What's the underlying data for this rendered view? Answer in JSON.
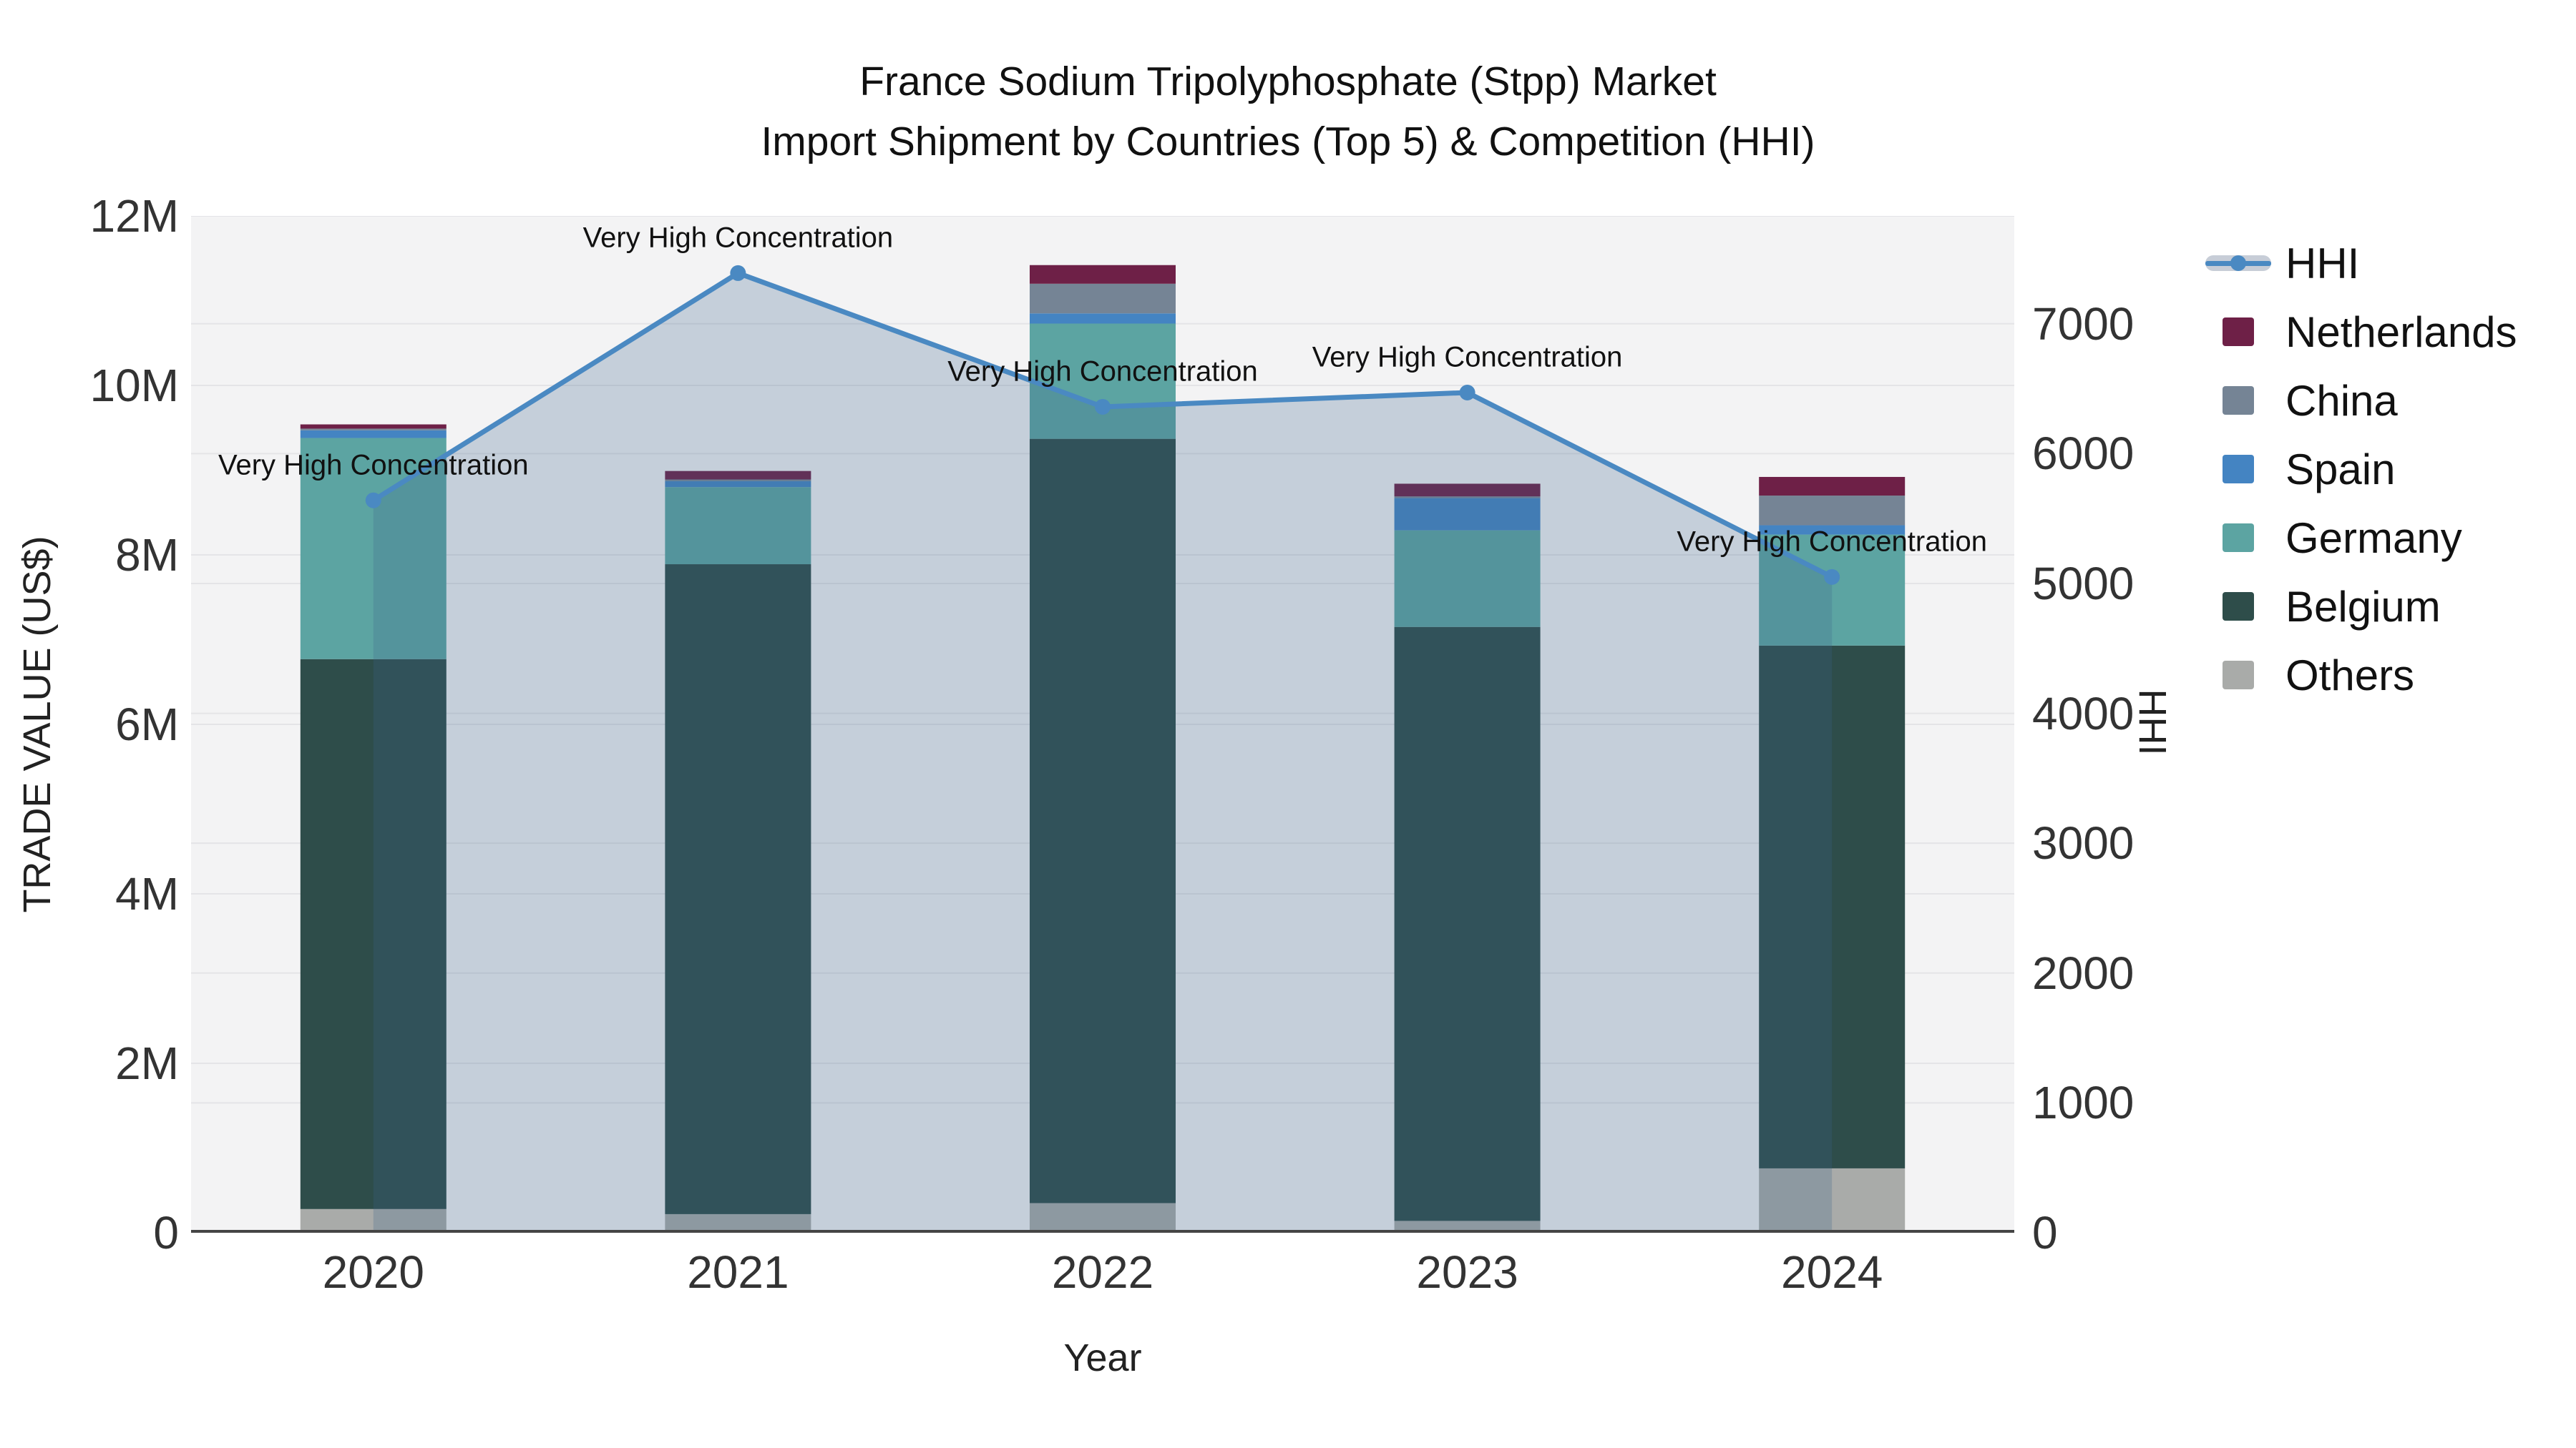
{
  "title": {
    "line1": "France Sodium Tripolyphosphate (Stpp) Market",
    "line2": "Import Shipment by Countries (Top 5) & Competition (HHI)"
  },
  "chart_data": {
    "type": "bar+line",
    "x_labels": [
      "2020",
      "2021",
      "2022",
      "2023",
      "2024"
    ],
    "bar_series_stack_bottom_to_top": [
      {
        "name": "Others",
        "color": "#a9aba9",
        "values_musd": [
          0.28,
          0.22,
          0.35,
          0.14,
          0.76
        ]
      },
      {
        "name": "Belgium",
        "color": "#2e4d4a",
        "values_musd": [
          6.49,
          7.67,
          9.02,
          7.01,
          6.17
        ]
      },
      {
        "name": "Germany",
        "color": "#5ca4a2",
        "values_musd": [
          2.61,
          0.91,
          1.36,
          1.14,
          1.31
        ]
      },
      {
        "name": "Spain",
        "color": "#4484c2",
        "values_musd": [
          0.09,
          0.07,
          0.12,
          0.38,
          0.11
        ]
      },
      {
        "name": "China",
        "color": "#758495",
        "values_musd": [
          0.02,
          0.02,
          0.35,
          0.02,
          0.35
        ]
      },
      {
        "name": "Netherlands",
        "color": "#6e2047",
        "values_musd": [
          0.05,
          0.1,
          0.22,
          0.15,
          0.22
        ]
      }
    ],
    "bar_totals_musd": [
      9.54,
      8.99,
      11.42,
      8.84,
      8.92
    ],
    "line_series": {
      "name": "HHI",
      "color": "#4a89c2",
      "area_fill": "rgba(60,100,140,0.25)",
      "values": [
        5640,
        7390,
        6360,
        6470,
        5050
      ]
    },
    "annotations": [
      {
        "x_index": 0,
        "label": "Very High Concentration"
      },
      {
        "x_index": 1,
        "label": "Very High Concentration"
      },
      {
        "x_index": 2,
        "label": "Very High Concentration"
      },
      {
        "x_index": 3,
        "label": "Very High Concentration"
      },
      {
        "x_index": 4,
        "label": "Very High Concentration"
      }
    ],
    "yaxis_left": {
      "title": "TRADE VALUE (US$)",
      "max_musd": 12,
      "ticks": [
        {
          "label": "0",
          "value_musd": 0
        },
        {
          "label": "2M",
          "value_musd": 2
        },
        {
          "label": "4M",
          "value_musd": 4
        },
        {
          "label": "6M",
          "value_musd": 6
        },
        {
          "label": "8M",
          "value_musd": 8
        },
        {
          "label": "10M",
          "value_musd": 10
        },
        {
          "label": "12M",
          "value_musd": 12
        }
      ]
    },
    "yaxis_right": {
      "title": "HHI",
      "plot_top_value": 7830,
      "ticks": [
        {
          "label": "0",
          "value": 0
        },
        {
          "label": "1000",
          "value": 1000
        },
        {
          "label": "2000",
          "value": 2000
        },
        {
          "label": "3000",
          "value": 3000
        },
        {
          "label": "4000",
          "value": 4000
        },
        {
          "label": "5000",
          "value": 5000
        },
        {
          "label": "6000",
          "value": 6000
        },
        {
          "label": "7000",
          "value": 7000
        }
      ]
    },
    "xaxis": {
      "title": "Year"
    },
    "grid_on": true,
    "legend_position": "right"
  },
  "legend": {
    "items": [
      {
        "label": "HHI",
        "type": "line",
        "color": "#4a89c2",
        "band_color": "#c7cdd7"
      },
      {
        "label": "Netherlands",
        "type": "box",
        "color": "#6e2047"
      },
      {
        "label": "China",
        "type": "box",
        "color": "#758495"
      },
      {
        "label": "Spain",
        "type": "box",
        "color": "#4484c2"
      },
      {
        "label": "Germany",
        "type": "box",
        "color": "#5ca4a2"
      },
      {
        "label": "Belgium",
        "type": "box",
        "color": "#2e4d4a"
      },
      {
        "label": "Others",
        "type": "box",
        "color": "#a9aba9"
      }
    ]
  },
  "colors": {
    "plot_background": "#f3f3f4",
    "gridline": "#e4e4e7",
    "axis_line": "#454545",
    "text": "#111111"
  }
}
